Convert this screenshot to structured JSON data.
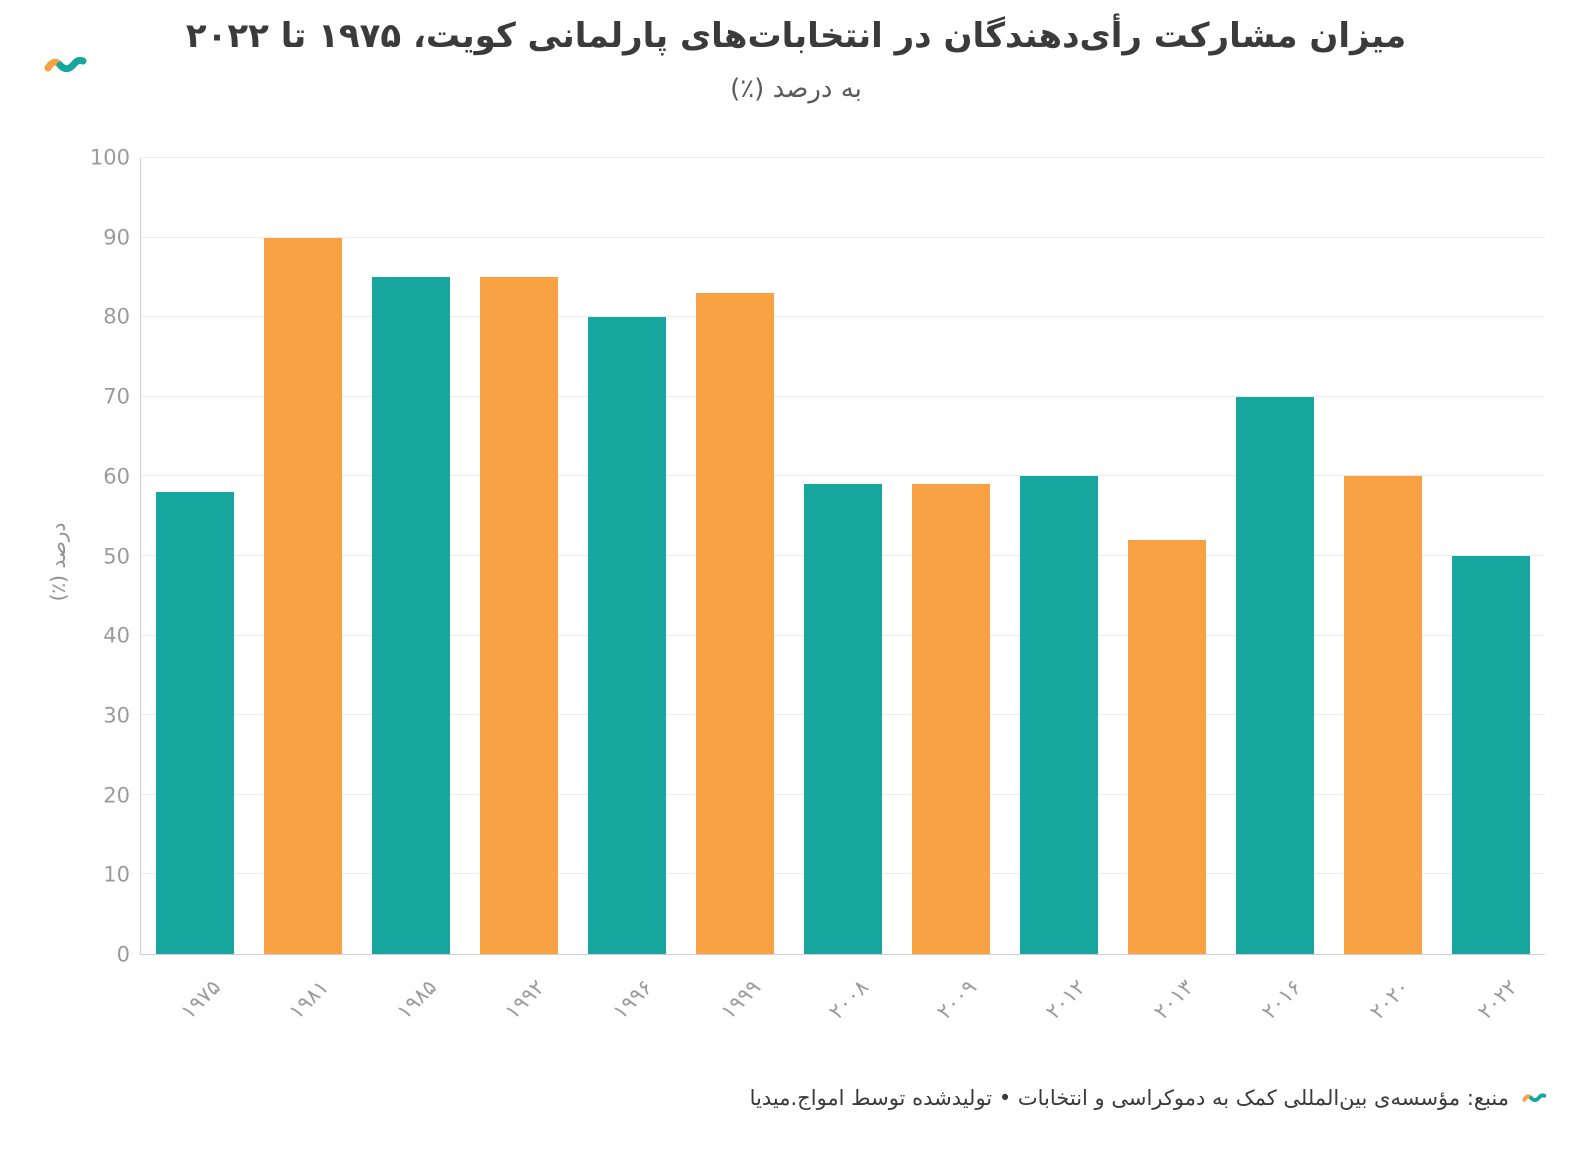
{
  "header": {
    "title": "میزان مشارکت رأی‌دهندگان در انتخابات‌های پارلمانی کویت، ۱۹۷۵ تا ۲۰۲۲",
    "subtitle": "به درصد (٪)"
  },
  "colors": {
    "teal": "#17a79e",
    "orange": "#f9a243",
    "grid": "#ececec",
    "axis": "#cfcfcf",
    "tick_text": "#9b9b9b",
    "title_text": "#3b3b3b"
  },
  "chart_data": {
    "type": "bar",
    "title": "میزان مشارکت رأی‌دهندگان در انتخابات‌های پارلمانی کویت، ۱۹۷۵ تا ۲۰۲۲",
    "subtitle": "به درصد (٪)",
    "xlabel": "",
    "ylabel": "درصد (٪)",
    "ylim": [
      0,
      100
    ],
    "yticks": [
      0,
      10,
      20,
      30,
      40,
      50,
      60,
      70,
      80,
      90,
      100
    ],
    "grid": true,
    "legend": false,
    "categories": [
      "۱۹۷۵",
      "۱۹۸۱",
      "۱۹۸۵",
      "۱۹۹۲",
      "۱۹۹۶",
      "۱۹۹۹",
      "۲۰۰۸",
      "۲۰۰۹",
      "۲۰۱۲",
      "۲۰۱۳",
      "۲۰۱۶",
      "۲۰۲۰",
      "۲۰۲۲"
    ],
    "categories_western": [
      "1975",
      "1981",
      "1985",
      "1992",
      "1996",
      "1999",
      "2008",
      "2009",
      "2012",
      "2013",
      "2016",
      "2020",
      "2022"
    ],
    "values": [
      58,
      90,
      85,
      85,
      80,
      83,
      59,
      59,
      60,
      52,
      70,
      60,
      50
    ],
    "bar_colors": [
      "#17a79e",
      "#f9a243",
      "#17a79e",
      "#f9a243",
      "#17a79e",
      "#f9a243",
      "#17a79e",
      "#f9a243",
      "#17a79e",
      "#f9a243",
      "#17a79e",
      "#f9a243",
      "#17a79e"
    ]
  },
  "footer": {
    "text": "منبع: مؤسسه‌ی بین‌المللی کمک به دموکراسی و انتخابات • تولیدشده توسط امواج.میدیا"
  }
}
